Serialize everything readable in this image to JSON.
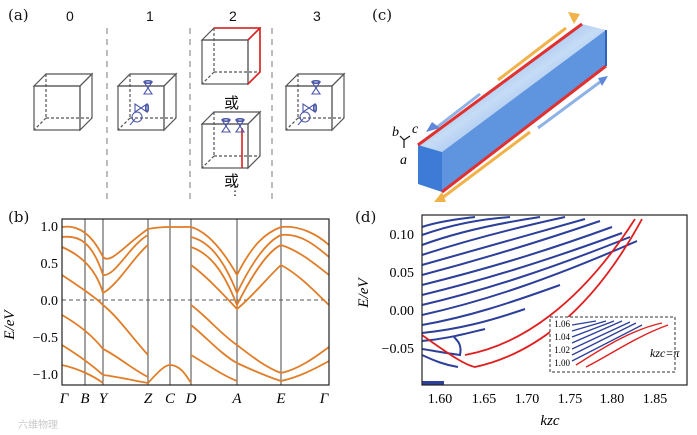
{
  "panel_a": {
    "label": "(a)",
    "columns": [
      "0",
      "1",
      "2",
      "3"
    ],
    "or_text": "或",
    "dots": "⋮"
  },
  "panel_b": {
    "label": "(b)",
    "ylabel": "E/eV",
    "yticks": [
      "1.0",
      "0.5",
      "0.0",
      "−0.5",
      "−1.0"
    ],
    "xticks": [
      "Γ",
      "B",
      "Y",
      "Z",
      "C",
      "D",
      "A",
      "E",
      "Γ"
    ]
  },
  "panel_c": {
    "label": "(c)",
    "axes": {
      "a": "a",
      "b": "b",
      "c": "c"
    }
  },
  "panel_d": {
    "label": "(d)",
    "ylabel": "E/eV",
    "xlabel": "kzc",
    "yticks": [
      "0.10",
      "0.05",
      "0.00",
      "−0.05"
    ],
    "xticks": [
      "1.60",
      "1.65",
      "1.70",
      "1.75",
      "1.80",
      "1.85"
    ],
    "inset": {
      "yticks": [
        "1.06",
        "1.04",
        "1.02",
        "1.00"
      ],
      "label": "kzc=π"
    }
  },
  "watermark": "六维物理"
}
